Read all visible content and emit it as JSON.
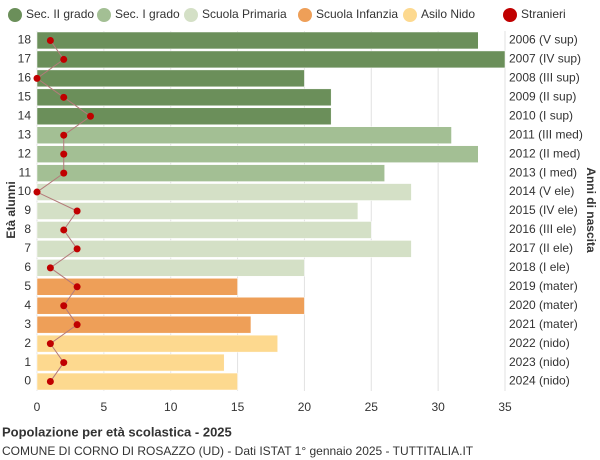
{
  "chart_data": {
    "type": "bar",
    "title": "Popolazione per età scolastica - 2025",
    "subtitle": "COMUNE DI CORNO DI ROSAZZO (UD) - Dati ISTAT 1° gennaio 2025 - TUTTITALIA.IT",
    "y_label": "Età alunni",
    "y2_label": "Anni di nascita",
    "categories": [
      "0",
      "1",
      "2",
      "3",
      "4",
      "5",
      "6",
      "7",
      "8",
      "9",
      "10",
      "11",
      "12",
      "13",
      "14",
      "15",
      "16",
      "17",
      "18"
    ],
    "year_labels": [
      "2024 (nido)",
      "2023 (nido)",
      "2022 (nido)",
      "2021 (mater)",
      "2020 (mater)",
      "2019 (mater)",
      "2018 (I ele)",
      "2017 (II ele)",
      "2016 (III ele)",
      "2015 (IV ele)",
      "2014 (V ele)",
      "2013 (I med)",
      "2012 (II med)",
      "2011 (III med)",
      "2010 (I sup)",
      "2009 (II sup)",
      "2008 (III sup)",
      "2007 (IV sup)",
      "2006 (V sup)"
    ],
    "series": [
      {
        "name": "Sec. II grado",
        "color": "#6b8f5a",
        "values": [
          null,
          null,
          null,
          null,
          null,
          null,
          null,
          null,
          null,
          null,
          null,
          null,
          null,
          null,
          22,
          22,
          20,
          35,
          33
        ]
      },
      {
        "name": "Sec. I grado",
        "color": "#a3bf94",
        "values": [
          null,
          null,
          null,
          null,
          null,
          null,
          null,
          null,
          null,
          null,
          null,
          26,
          33,
          31,
          null,
          null,
          null,
          null,
          null
        ]
      },
      {
        "name": "Scuola Primaria",
        "color": "#d4e0c6",
        "values": [
          null,
          null,
          null,
          null,
          null,
          null,
          20,
          28,
          25,
          24,
          28,
          null,
          null,
          null,
          null,
          null,
          null,
          null,
          null
        ]
      },
      {
        "name": "Scuola Infanzia",
        "color": "#ee9f58",
        "values": [
          null,
          null,
          null,
          16,
          20,
          15,
          null,
          null,
          null,
          null,
          null,
          null,
          null,
          null,
          null,
          null,
          null,
          null,
          null
        ]
      },
      {
        "name": "Asilo Nido",
        "color": "#fdd98f",
        "values": [
          15,
          14,
          18,
          null,
          null,
          null,
          null,
          null,
          null,
          null,
          null,
          null,
          null,
          null,
          null,
          null,
          null,
          null,
          null
        ]
      },
      {
        "name": "Stranieri",
        "color": "#c00000",
        "type": "line",
        "values": [
          1,
          2,
          1,
          3,
          2,
          3,
          1,
          3,
          2,
          3,
          0,
          2,
          2,
          2,
          4,
          2,
          0,
          2,
          1
        ]
      }
    ],
    "xlim": [
      0,
      35
    ],
    "xticks": [
      0,
      5,
      10,
      15,
      20,
      25,
      30,
      35
    ],
    "grid": true
  }
}
